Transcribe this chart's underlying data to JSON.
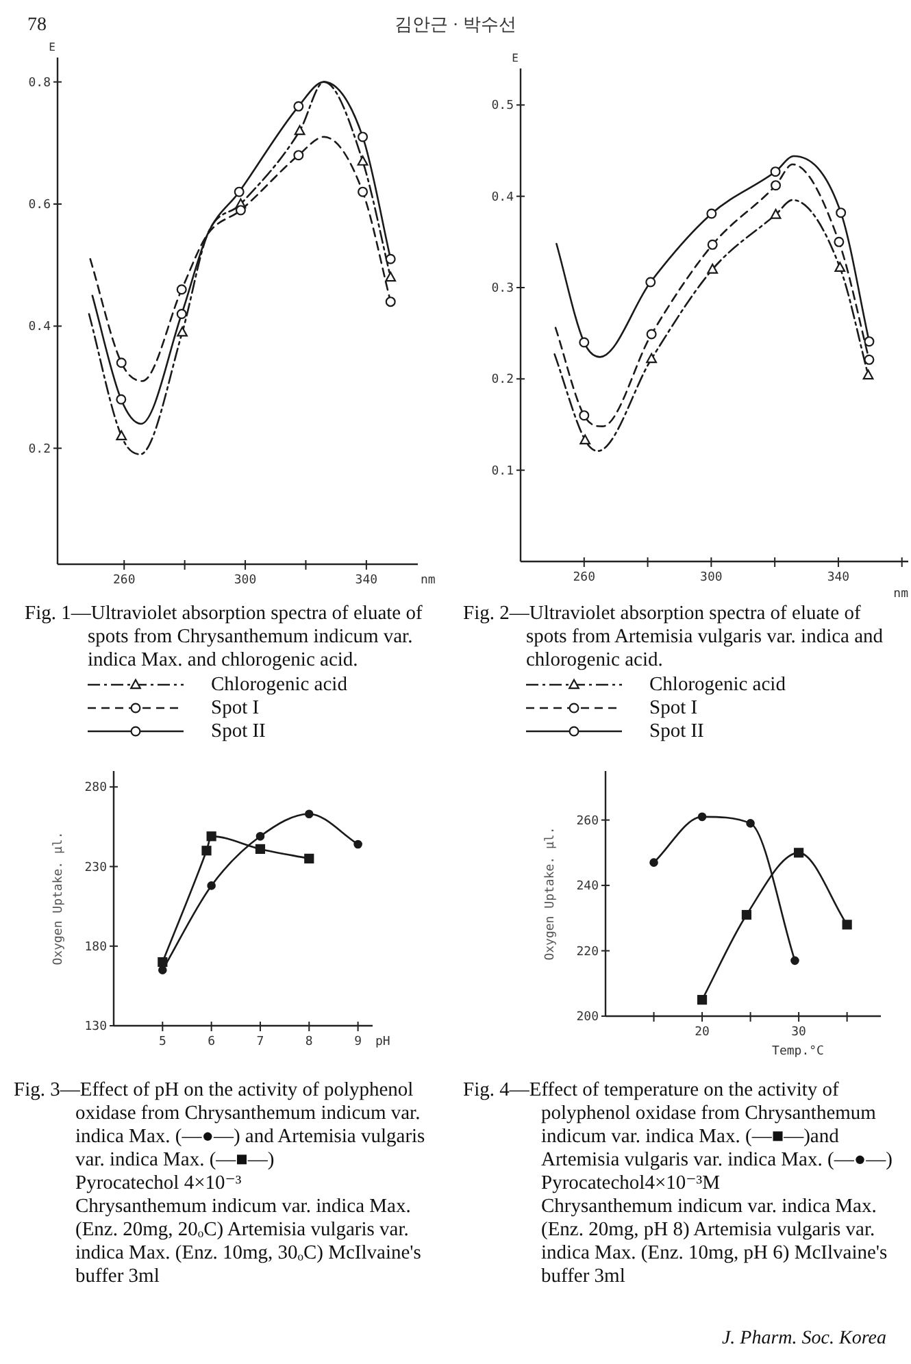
{
  "chart_data": [
    {
      "type": "line",
      "title": "Fig. 1—Ultraviolet absorption spectra of eluate of spots from Chrysanthemum indicum var. indica Max. and chlorogenic acid.",
      "xlabel": "nm",
      "ylabel": "E",
      "xlim": [
        238,
        357
      ],
      "xticks": [
        260,
        {
          "value": 280,
          "label": null
        },
        300,
        {
          "value": 320,
          "label": null
        },
        340
      ],
      "ylim": [
        0.01,
        0.84
      ],
      "yticks": [
        0.2,
        0.4,
        0.6,
        0.8
      ],
      "legend": "bottom",
      "annotations": [
        "78",
        "김안근 · 박수선"
      ],
      "series": [
        {
          "name": "Chlorogenic acid",
          "type": "line",
          "color": "#1a1a1a",
          "line_style": "dashdot",
          "marker": "none",
          "x": [
            248.4,
            259.1,
            265.3,
            279.2,
            287.5,
            298.5,
            318,
            326,
            338.8,
            348
          ],
          "values": [
            0.42,
            0.22,
            0.19,
            0.39,
            0.55,
            0.6,
            0.72,
            0.8,
            0.67,
            0.48
          ]
        },
        {
          "type": "scatter",
          "color": "#1a1a1a",
          "marker": "triangle",
          "x": [
            259.1,
            279.2,
            298.5,
            318,
            338.8,
            348
          ],
          "values": [
            0.22,
            0.39,
            0.6,
            0.72,
            0.67,
            0.48
          ]
        },
        {
          "name": "Spot I",
          "type": "line",
          "color": "#1a1a1a",
          "line_style": "dashed",
          "marker": "none",
          "x": [
            248.8,
            259.1,
            266,
            279,
            287.5,
            298.5,
            317.6,
            326,
            338.8,
            348
          ],
          "values": [
            0.51,
            0.34,
            0.31,
            0.46,
            0.55,
            0.59,
            0.68,
            0.71,
            0.62,
            0.44
          ]
        },
        {
          "type": "scatter",
          "color": "#1a1a1a",
          "marker": "circle",
          "x": [
            259.1,
            279,
            298.5,
            317.6,
            338.8,
            348
          ],
          "values": [
            0.34,
            0.46,
            0.59,
            0.68,
            0.62,
            0.44
          ]
        },
        {
          "name": "Spot II",
          "type": "line",
          "color": "#1a1a1a",
          "line_style": "solid",
          "marker": "none",
          "x": [
            249.5,
            259,
            265.6,
            279,
            287.5,
            298,
            317.6,
            326,
            338.8,
            348
          ],
          "values": [
            0.45,
            0.28,
            0.24,
            0.42,
            0.55,
            0.62,
            0.76,
            0.8,
            0.71,
            0.51
          ]
        },
        {
          "type": "scatter",
          "color": "#1a1a1a",
          "marker": "circle",
          "x": [
            259,
            279,
            298,
            317.6,
            338.8,
            348
          ],
          "values": [
            0.28,
            0.42,
            0.62,
            0.76,
            0.71,
            0.51
          ]
        }
      ]
    },
    {
      "type": "line",
      "title": "Fig. 2—Ultraviolet absorption spectra of eluate of spots from Artemisia vulgaris var. indica and chlorogenic acid.",
      "xlabel": "nm",
      "ylabel": "E",
      "xlim": [
        240,
        362
      ],
      "xticks": [
        260,
        {
          "value": 280,
          "label": null
        },
        300,
        {
          "value": 320,
          "label": null
        },
        340,
        {
          "value": 360,
          "label": null
        }
      ],
      "ylim": [
        0,
        0.54
      ],
      "yticks": [
        0.1,
        0.2,
        0.3,
        0.4,
        0.5
      ],
      "legend": "bottom",
      "series": [
        {
          "name": "Chlorogenic acid",
          "type": "line",
          "color": "#1a1a1a",
          "line_style": "dashdot",
          "marker": "none",
          "x": [
            250.7,
            260.3,
            264.3,
            281.2,
            300.4,
            320.3,
            325.6,
            340.5,
            349.4
          ],
          "values": [
            0.227,
            0.133,
            0.121,
            0.222,
            0.32,
            0.38,
            0.396,
            0.322,
            0.204
          ]
        },
        {
          "type": "scatter",
          "color": "#1a1a1a",
          "marker": "triangle",
          "x": [
            260.3,
            281.2,
            300.4,
            320.3,
            340.5,
            349.4
          ],
          "values": [
            0.133,
            0.222,
            0.32,
            0.38,
            0.322,
            0.204
          ]
        },
        {
          "name": "Spot I",
          "type": "line",
          "color": "#1a1a1a",
          "line_style": "dashed",
          "marker": "none",
          "x": [
            251,
            260,
            265.8,
            281.2,
            300.4,
            320.3,
            325.6,
            340.2,
            349.7
          ],
          "values": [
            0.256,
            0.16,
            0.148,
            0.249,
            0.347,
            0.412,
            0.435,
            0.35,
            0.221
          ]
        },
        {
          "type": "scatter",
          "color": "#1a1a1a",
          "marker": "circle",
          "x": [
            260,
            281.2,
            300.4,
            320.3,
            340.2,
            349.7
          ],
          "values": [
            0.16,
            0.249,
            0.347,
            0.412,
            0.35,
            0.221
          ]
        },
        {
          "name": "Spot II",
          "type": "line",
          "color": "#1a1a1a",
          "line_style": "solid",
          "marker": "none",
          "x": [
            251.3,
            260,
            265,
            280.9,
            300.1,
            320.2,
            326,
            340.8,
            349.7
          ],
          "values": [
            0.348,
            0.24,
            0.224,
            0.306,
            0.381,
            0.427,
            0.444,
            0.382,
            0.241
          ]
        },
        {
          "type": "scatter",
          "color": "#1a1a1a",
          "marker": "circle",
          "x": [
            260,
            280.9,
            300.1,
            320.2,
            340.8,
            349.7
          ],
          "values": [
            0.24,
            0.306,
            0.381,
            0.427,
            0.382,
            0.241
          ]
        }
      ]
    },
    {
      "type": "line",
      "title": "Fig. 3—Effect of pH on the activity of polyphenol oxidase from Chrysanthemum indicum var. indica Max. (—●—) and Artemisia vulgaris var. indica Max. (—■—)",
      "xlabel": "pH",
      "ylabel": "Oxygen Uptake. μl.",
      "xlim": [
        4,
        9.3
      ],
      "xticks": [
        5,
        6,
        7,
        8,
        9
      ],
      "ylim": [
        130,
        290
      ],
      "yticks": [
        130,
        180,
        230,
        280
      ],
      "annotations": [
        "Pyrocatechol 4×10⁻³",
        "Chrysanthemum indicum var. indica Max. (Enz. 20mg, 20ₒC) Artemisia vulgaris var. indica Max. (Enz. 10mg, 30ₒC) McIlvaine's buffer 3ml"
      ],
      "series": [
        {
          "type": "line",
          "color": "#1a1a1a",
          "line_style": "solid",
          "marker": "circle",
          "x": [
            5,
            6,
            7,
            8,
            9
          ],
          "values": [
            165,
            218,
            249,
            263,
            244
          ]
        },
        {
          "type": "line",
          "color": "#1a1a1a",
          "line_style": "solid",
          "marker": "square",
          "x": [
            5,
            5.9,
            6,
            7,
            8
          ],
          "values": [
            170,
            240,
            249,
            241,
            235
          ]
        }
      ]
    },
    {
      "type": "line",
      "title": "Fig. 4—Effect of temperature on the activity of polyphenol oxidase from Chrysanthemum indicum var. indica Max. (—■—)and Artemisia vulgaris var. indica Max. (—●—)",
      "xlabel": "Temp.°C",
      "ylabel": "Oxygen Uptake. μl.",
      "xlim": [
        10,
        38.5
      ],
      "xticks": [
        {
          "value": 15,
          "label": null
        },
        20,
        {
          "value": 25,
          "label": null
        },
        30,
        {
          "value": 35,
          "label": null
        }
      ],
      "ylim": [
        200,
        275
      ],
      "yticks": [
        200,
        220,
        240,
        260
      ],
      "annotations": [
        "Pyrocatechol4×10⁻³M",
        "Chrysanthemum indicum var. indica Max. (Enz. 20mg, pH 8) Artemisia vulgaris var. indica Max. (Enz. 10mg, pH 6) McIlvaine's buffer 3ml",
        "J. Pharm. Soc. Korea"
      ],
      "series": [
        {
          "type": "line",
          "color": "#1a1a1a",
          "line_style": "solid",
          "marker": "circle",
          "x": [
            15,
            20,
            25,
            29.6
          ],
          "values": [
            247,
            261,
            259,
            217
          ]
        },
        {
          "type": "line",
          "color": "#1a1a1a",
          "line_style": "solid",
          "marker": "square",
          "x": [
            20,
            24.6,
            30,
            35
          ],
          "values": [
            205,
            231,
            250,
            228
          ]
        }
      ]
    }
  ]
}
